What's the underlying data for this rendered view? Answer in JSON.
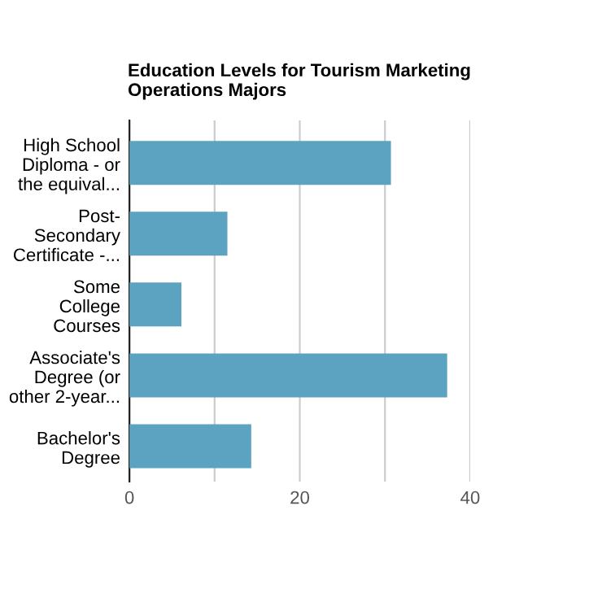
{
  "chart_data": {
    "type": "bar",
    "orientation": "horizontal",
    "title": "Education Levels for Tourism Marketing\nOperations Majors",
    "categories": [
      "High School\nDiploma - or\nthe equival...",
      "Post-\nSecondary\nCertificate -...",
      "Some\nCollege\nCourses",
      "Associate's\nDegree (or\nother 2-year...",
      "Bachelor's\nDegree"
    ],
    "values": [
      30.7,
      11.5,
      6.1,
      37.3,
      14.3
    ],
    "color": "#5ba3c1",
    "xlim": [
      0,
      40
    ],
    "xticks": [
      0,
      {
        "value": 10,
        "label": null
      },
      20,
      {
        "value": 30,
        "label": null
      },
      40
    ],
    "grid": "x"
  }
}
